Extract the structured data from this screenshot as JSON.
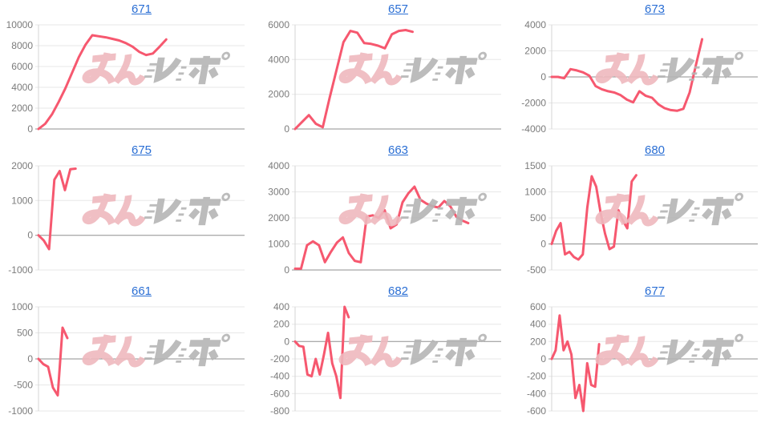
{
  "page": {
    "background": "#ffffff"
  },
  "colors": {
    "line": "#f6586f",
    "gridline": "#e7e7e7",
    "zero_line": "#8f8f8f",
    "axis_line": "#d4d4d4",
    "tick_label": "#7b7b7b",
    "title_link": "#2b6fd4",
    "watermark_pink": "#efb9be",
    "watermark_gray": "#b5b5b5"
  },
  "watermark": {
    "text": "みんレポ",
    "part_pink": "みん",
    "part_gray": "レポ"
  },
  "chart_data": [
    {
      "type": "line",
      "title": "671",
      "xlabel": "",
      "ylabel": "",
      "ylim": [
        0,
        10000
      ],
      "ytick_step": 2000,
      "grid": true,
      "x_end_fraction": 0.62,
      "values": [
        0,
        500,
        1400,
        2600,
        3900,
        5400,
        6900,
        8100,
        9000,
        8900,
        8800,
        8650,
        8500,
        8250,
        7900,
        7400,
        7100,
        7250,
        7900,
        8600
      ]
    },
    {
      "type": "line",
      "title": "657",
      "xlabel": "",
      "ylabel": "",
      "ylim": [
        0,
        6000
      ],
      "ytick_step": 2000,
      "grid": true,
      "x_end_fraction": 0.57,
      "values": [
        0,
        400,
        800,
        300,
        100,
        1800,
        3400,
        5000,
        5650,
        5550,
        4950,
        4900,
        4800,
        4650,
        5450,
        5650,
        5700,
        5600
      ]
    },
    {
      "type": "line",
      "title": "673",
      "xlabel": "",
      "ylabel": "",
      "ylim": [
        -4000,
        4000
      ],
      "ytick_step": 2000,
      "grid": true,
      "x_end_fraction": 0.73,
      "values": [
        0,
        0,
        -100,
        600,
        500,
        350,
        100,
        -700,
        -950,
        -1100,
        -1200,
        -1400,
        -1750,
        -1950,
        -1100,
        -1450,
        -1600,
        -2100,
        -2400,
        -2550,
        -2600,
        -2450,
        -1200,
        900,
        2900
      ]
    },
    {
      "type": "line",
      "title": "675",
      "xlabel": "",
      "ylabel": "",
      "ylim": [
        -1000,
        2000
      ],
      "ytick_step": 1000,
      "grid": true,
      "x_end_fraction": 0.18,
      "values": [
        0,
        -150,
        -400,
        1600,
        1850,
        1300,
        1900,
        1920
      ]
    },
    {
      "type": "line",
      "title": "663",
      "xlabel": "",
      "ylabel": "",
      "ylim": [
        0,
        4000
      ],
      "ytick_step": 1000,
      "grid": true,
      "x_end_fraction": 0.84,
      "values": [
        50,
        50,
        950,
        1100,
        950,
        300,
        700,
        1050,
        1250,
        650,
        350,
        300,
        2050,
        2100,
        2000,
        2300,
        1600,
        1750,
        2600,
        2950,
        3200,
        2700,
        2550,
        2450,
        2400,
        2650,
        2450,
        2050,
        1900,
        1800
      ]
    },
    {
      "type": "line",
      "title": "680",
      "xlabel": "",
      "ylabel": "",
      "ylim": [
        -500,
        1500
      ],
      "ytick_step": 500,
      "grid": true,
      "x_end_fraction": 0.41,
      "values": [
        0,
        250,
        400,
        -200,
        -150,
        -250,
        -300,
        -200,
        700,
        1300,
        1100,
        600,
        200,
        -100,
        -50,
        650,
        450,
        300,
        1200,
        1320
      ]
    },
    {
      "type": "line",
      "title": "661",
      "xlabel": "",
      "ylabel": "",
      "ylim": [
        -1000,
        1000
      ],
      "ytick_step": 500,
      "grid": true,
      "x_end_fraction": 0.14,
      "values": [
        0,
        -100,
        -150,
        -550,
        -700,
        600,
        400
      ]
    },
    {
      "type": "line",
      "title": "682",
      "xlabel": "",
      "ylabel": "",
      "ylim": [
        -800,
        400
      ],
      "ytick_step": 200,
      "grid": true,
      "x_end_fraction": 0.26,
      "values": [
        0,
        -50,
        -60,
        -380,
        -400,
        -200,
        -380,
        -150,
        100,
        -250,
        -400,
        -650,
        400,
        280
      ]
    },
    {
      "type": "line",
      "title": "677",
      "xlabel": "",
      "ylabel": "",
      "ylim": [
        -600,
        600
      ],
      "ytick_step": 200,
      "grid": true,
      "x_end_fraction": 0.23,
      "values": [
        0,
        100,
        500,
        100,
        200,
        50,
        -450,
        -300,
        -600,
        -50,
        -300,
        -320,
        170
      ]
    }
  ]
}
